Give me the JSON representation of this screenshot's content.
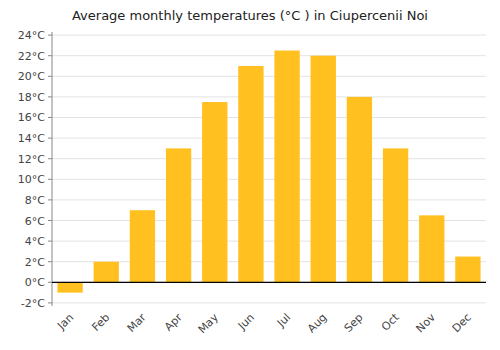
{
  "chart_data": {
    "type": "bar",
    "title": "Average monthly temperatures (°C ) in Ciupercenii Noi",
    "categories": [
      "Jan",
      "Feb",
      "Mar",
      "Apr",
      "May",
      "Jun",
      "Jul",
      "Aug",
      "Sep",
      "Oct",
      "Nov",
      "Dec"
    ],
    "values": [
      -1.0,
      2.0,
      7.0,
      13.0,
      17.5,
      21.0,
      22.5,
      22.0,
      18.0,
      13.0,
      6.5,
      2.5
    ],
    "color": "#FFC020",
    "ylim": [
      -2.3,
      24.3
    ],
    "yticks": [
      {
        "value": -2,
        "label": "-2°C"
      },
      {
        "value": 0,
        "label": "0°C"
      },
      {
        "value": 2,
        "label": "2°C"
      },
      {
        "value": 4,
        "label": "4°C"
      },
      {
        "value": 6,
        "label": "6°C"
      },
      {
        "value": 8,
        "label": "8°C"
      },
      {
        "value": 10,
        "label": "10°C"
      },
      {
        "value": 12,
        "label": "12°C"
      },
      {
        "value": 14,
        "label": "14°C"
      },
      {
        "value": 16,
        "label": "16°C"
      },
      {
        "value": 18,
        "label": "18°C"
      },
      {
        "value": 20,
        "label": "20°C"
      },
      {
        "value": 22,
        "label": "22°C"
      },
      {
        "value": 24,
        "label": "24°C"
      }
    ],
    "grid": true
  }
}
